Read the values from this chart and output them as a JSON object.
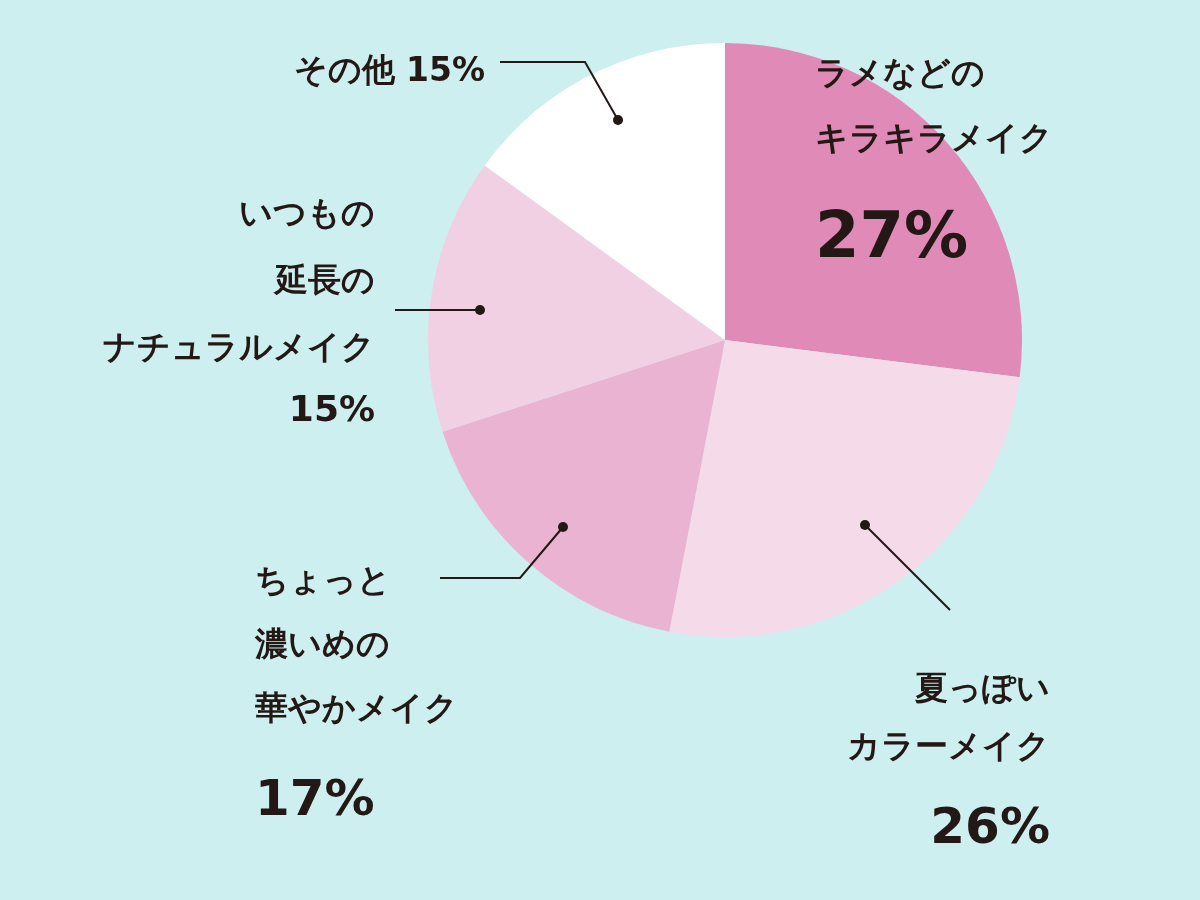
{
  "chart_data": {
    "type": "pie",
    "categories": [
      "ラメなどのキラキラメイク",
      "夏っぽいカラーメイク",
      "ちょっと濃いめの華やかメイク",
      "いつもの延長のナチュラルメイク",
      "その他"
    ],
    "values": [
      27,
      26,
      17,
      15,
      15
    ],
    "colors": [
      "#e08ab8",
      "#f5dbea",
      "#ebb3d2",
      "#f2d0e4",
      "#ffffff"
    ],
    "value_labels": [
      "27%",
      "26%",
      "17%",
      "15%",
      "15%"
    ]
  }
}
